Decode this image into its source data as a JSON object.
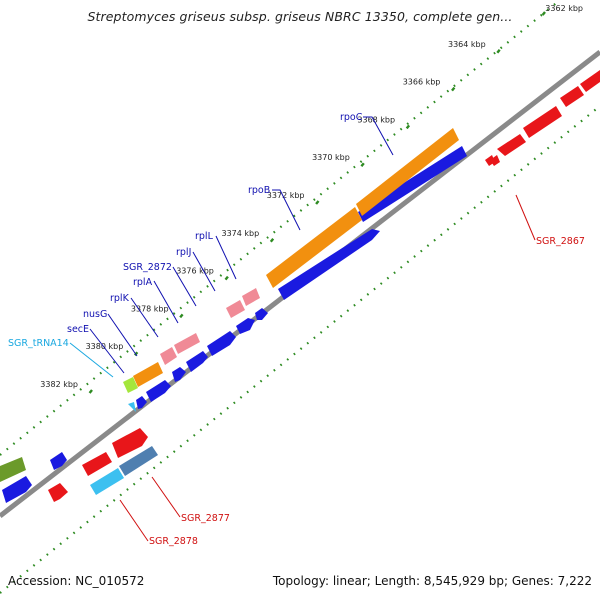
{
  "title": "Streptomyces griseus subsp. griseus NBRC 13350, complete gen...",
  "footer": {
    "accession": "Accession: NC_010572",
    "topology": "Topology: linear; Length: 8,545,929 bp; Genes: 7,222"
  },
  "ticks": [
    {
      "pos": 3362,
      "label": "3362 kbp"
    },
    {
      "pos": 3364,
      "label": "3364 kbp"
    },
    {
      "pos": 3366,
      "label": "3366 kbp"
    },
    {
      "pos": 3368,
      "label": "3368 kbp"
    },
    {
      "pos": 3370,
      "label": "3370 kbp"
    },
    {
      "pos": 3372,
      "label": "3372 kbp"
    },
    {
      "pos": 3374,
      "label": "3374 kbp"
    },
    {
      "pos": 3376,
      "label": "3376 kbp"
    },
    {
      "pos": 3378,
      "label": "3378 kbp"
    },
    {
      "pos": 3380,
      "label": "3380 kbp"
    },
    {
      "pos": 3382,
      "label": "3382 kbp"
    }
  ],
  "colors": {
    "backbone": "#8a8a8a",
    "dots": "#2e8b22",
    "cds_forward": "#e8161a",
    "cds_reverse": "#1a1ae0",
    "rpoC": "#f2900f",
    "ribosomal": "#f08a96",
    "tRNA": "#3cc0f0",
    "secE": "#a4e63c",
    "pink_forward": "#f08a96",
    "gene_2878": "#3cc0f0",
    "gene_2877": "#4f7fb0",
    "olive": "#6b9a2a",
    "label_forward": "#d01010",
    "label_reverse": "#1010b0",
    "label_tRNA": "#1aa8e0"
  },
  "gene_labels": [
    {
      "text": "rpoC",
      "color": "reverse"
    },
    {
      "text": "rpoB",
      "color": "reverse"
    },
    {
      "text": "rplL",
      "color": "reverse"
    },
    {
      "text": "rplJ",
      "color": "reverse"
    },
    {
      "text": "SGR_2872",
      "color": "reverse"
    },
    {
      "text": "rplA",
      "color": "reverse"
    },
    {
      "text": "rplK",
      "color": "reverse"
    },
    {
      "text": "nusG",
      "color": "reverse"
    },
    {
      "text": "secE",
      "color": "reverse"
    },
    {
      "text": "SGR_tRNA14",
      "color": "tRNA"
    },
    {
      "text": "SGR_2867",
      "color": "forward"
    },
    {
      "text": "SGR_2877",
      "color": "forward"
    },
    {
      "text": "SGR_2878",
      "color": "forward"
    }
  ]
}
